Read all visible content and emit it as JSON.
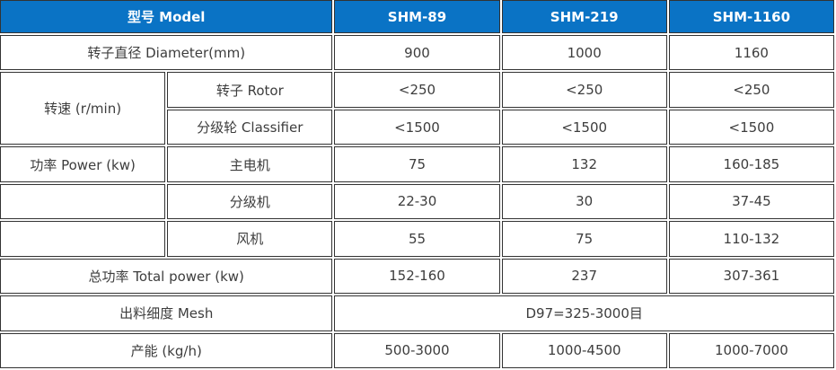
{
  "table": {
    "header": {
      "model_label": "型号 Model",
      "models": [
        "SHM-89",
        "SHM-219",
        "SHM-1160"
      ]
    },
    "rows": {
      "diameter": {
        "label": "转子直径 Diameter(mm)",
        "values": [
          "900",
          "1000",
          "1160"
        ]
      },
      "speed": {
        "group_label": "转速 (r/min)",
        "rotor": {
          "label": "转子 Rotor",
          "values": [
            "<250",
            "<250",
            "<250"
          ]
        },
        "classifier": {
          "label": "分级轮 Classifier",
          "values": [
            "<1500",
            "<1500",
            "<1500"
          ]
        }
      },
      "power": {
        "group_label": "功率 Power (kw)",
        "main_motor": {
          "label": "主电机",
          "values": [
            "75",
            "132",
            "160-185"
          ]
        },
        "classifier_motor": {
          "label": "分级机",
          "values": [
            "22-30",
            "30",
            "37-45"
          ]
        },
        "fan": {
          "label": "风机",
          "values": [
            "55",
            "75",
            "110-132"
          ]
        }
      },
      "total_power": {
        "label": "总功率 Total power (kw)",
        "values": [
          "152-160",
          "237",
          "307-361"
        ]
      },
      "mesh": {
        "label": "出料细度 Mesh",
        "value": "D97=325-3000目"
      },
      "capacity": {
        "label": "产能 (kg/h)",
        "values": [
          "500-3000",
          "1000-4500",
          "1000-7000"
        ]
      }
    }
  },
  "colors": {
    "header_bg": "#0a73c5",
    "header_text": "#ffffff",
    "border": "#333333",
    "body_text": "#3d3d3d"
  }
}
